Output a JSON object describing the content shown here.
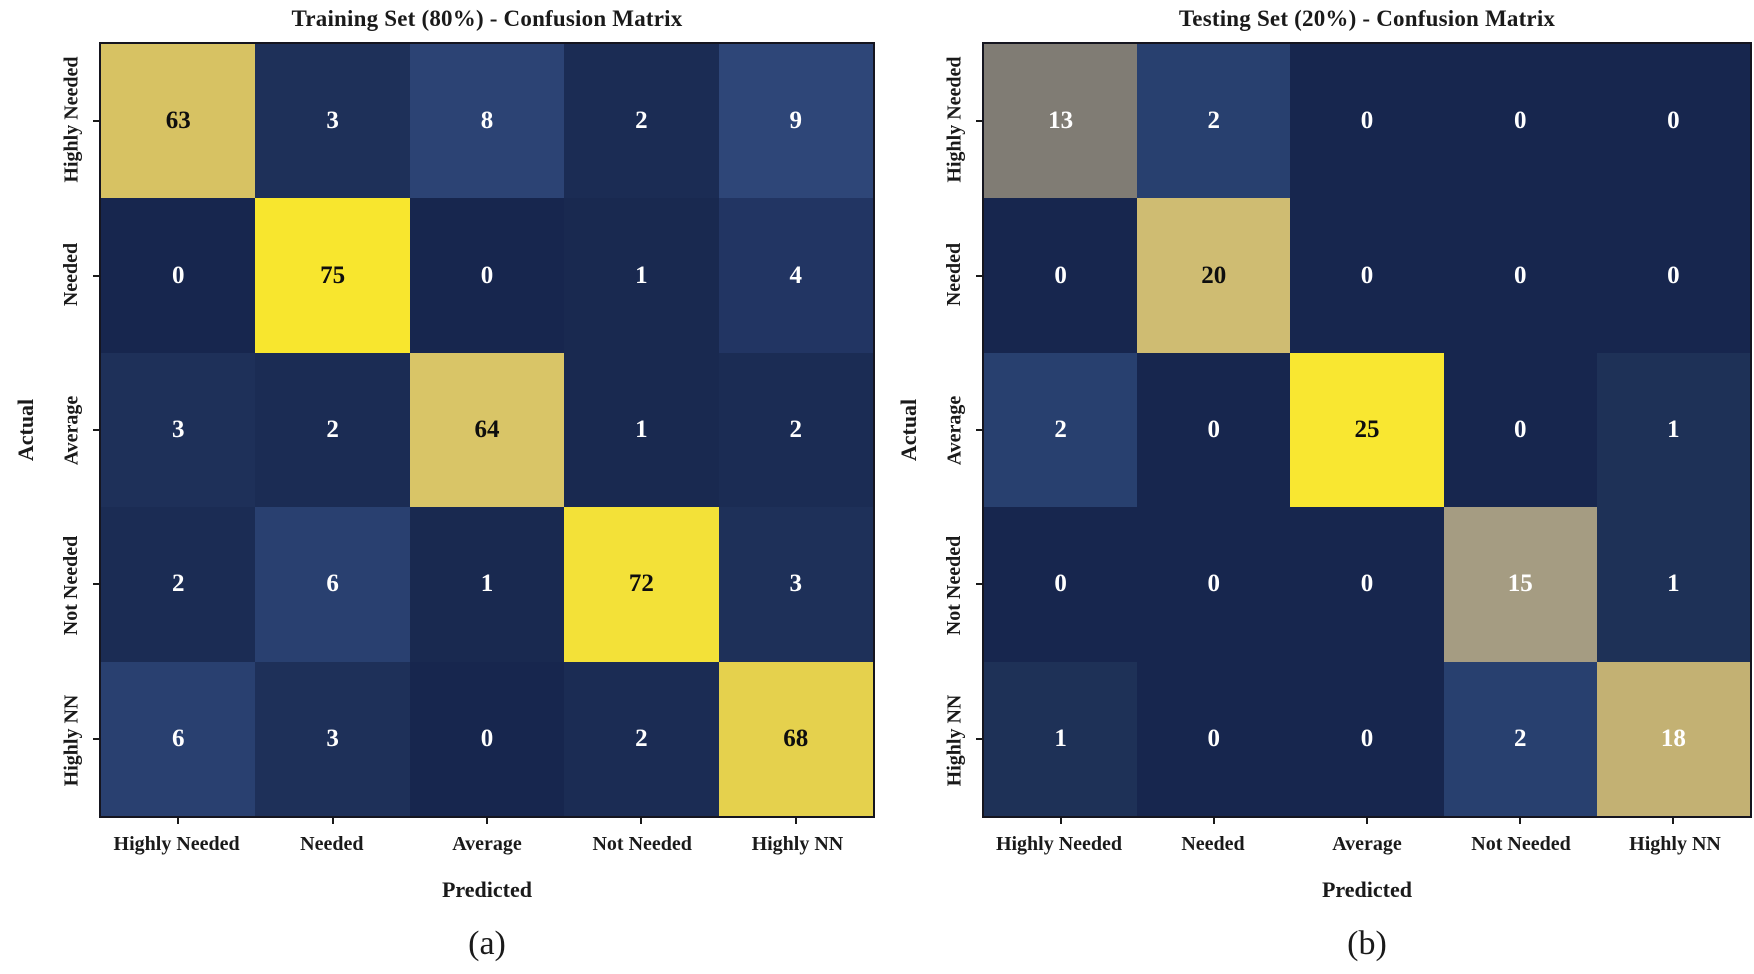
{
  "colors": {
    "background": "#ffffff",
    "text": "#1a1a1a",
    "cell_text_light": "#ffffff",
    "cell_text_dark": "#0e0e0e",
    "grid_border": "#15151f",
    "tick": "#1a1a1a",
    "colormap_low": "#17264e",
    "colormap_mid": "#807c74",
    "colormap_high": "#f8e62e"
  },
  "chart_data": [
    {
      "type": "heatmap",
      "title": "Training Set (80%) - Confusion Matrix",
      "caption": "(a)",
      "xlabel": "Predicted",
      "ylabel": "Actual",
      "x_categories": [
        "Highly Needed",
        "Needed",
        "Average",
        "Not Needed",
        "Highly NN"
      ],
      "y_categories": [
        "Highly Needed",
        "Needed",
        "Average",
        "Not Needed",
        "Highly NN"
      ],
      "values": [
        [
          63,
          3,
          8,
          2,
          9
        ],
        [
          0,
          75,
          0,
          1,
          4
        ],
        [
          3,
          2,
          64,
          1,
          2
        ],
        [
          2,
          6,
          1,
          72,
          3
        ],
        [
          6,
          3,
          0,
          2,
          68
        ]
      ],
      "vmin": 0,
      "vmax": 75,
      "colormap": "cividis (dark navy -> gray -> yellow)",
      "legend": "none",
      "cell_colors": [
        [
          "#d7c263",
          "#1e3059",
          "#2c4374",
          "#1b2c54",
          "#2e4678"
        ],
        [
          "#17264e",
          "#f8e62e",
          "#17264e",
          "#192950",
          "#223563"
        ],
        [
          "#1e3059",
          "#1b2c54",
          "#d9c567",
          "#192950",
          "#1b2c54"
        ],
        [
          "#1b2c54",
          "#294070",
          "#192950",
          "#f3e138",
          "#1e3059"
        ],
        [
          "#294070",
          "#1e3059",
          "#17264e",
          "#1b2c54",
          "#e5d14d"
        ]
      ]
    },
    {
      "type": "heatmap",
      "title": "Testing Set (20%) - Confusion Matrix",
      "caption": "(b)",
      "xlabel": "Predicted",
      "ylabel": "Actual",
      "x_categories": [
        "Highly Needed",
        "Needed",
        "Average",
        "Not Needed",
        "Highly NN"
      ],
      "y_categories": [
        "Highly Needed",
        "Needed",
        "Average",
        "Not Needed",
        "Highly NN"
      ],
      "values": [
        [
          13,
          2,
          0,
          0,
          0
        ],
        [
          0,
          20,
          0,
          0,
          0
        ],
        [
          2,
          0,
          25,
          0,
          1
        ],
        [
          0,
          0,
          0,
          15,
          1
        ],
        [
          1,
          0,
          0,
          2,
          18
        ]
      ],
      "vmin": 0,
      "vmax": 25,
      "colormap": "cividis (dark navy -> gray -> yellow)",
      "legend": "none",
      "cell_colors": [
        [
          "#807c74",
          "#28406f",
          "#17264e",
          "#17264e",
          "#17264e"
        ],
        [
          "#17264e",
          "#cfbc72",
          "#17264e",
          "#17264e",
          "#17264e"
        ],
        [
          "#28406f",
          "#17264e",
          "#f9e731",
          "#17264e",
          "#1e3157"
        ],
        [
          "#17264e",
          "#17264e",
          "#17264e",
          "#a59c82",
          "#1e3157"
        ],
        [
          "#1e3157",
          "#17264e",
          "#17264e",
          "#28406f",
          "#c3b173"
        ]
      ]
    }
  ]
}
